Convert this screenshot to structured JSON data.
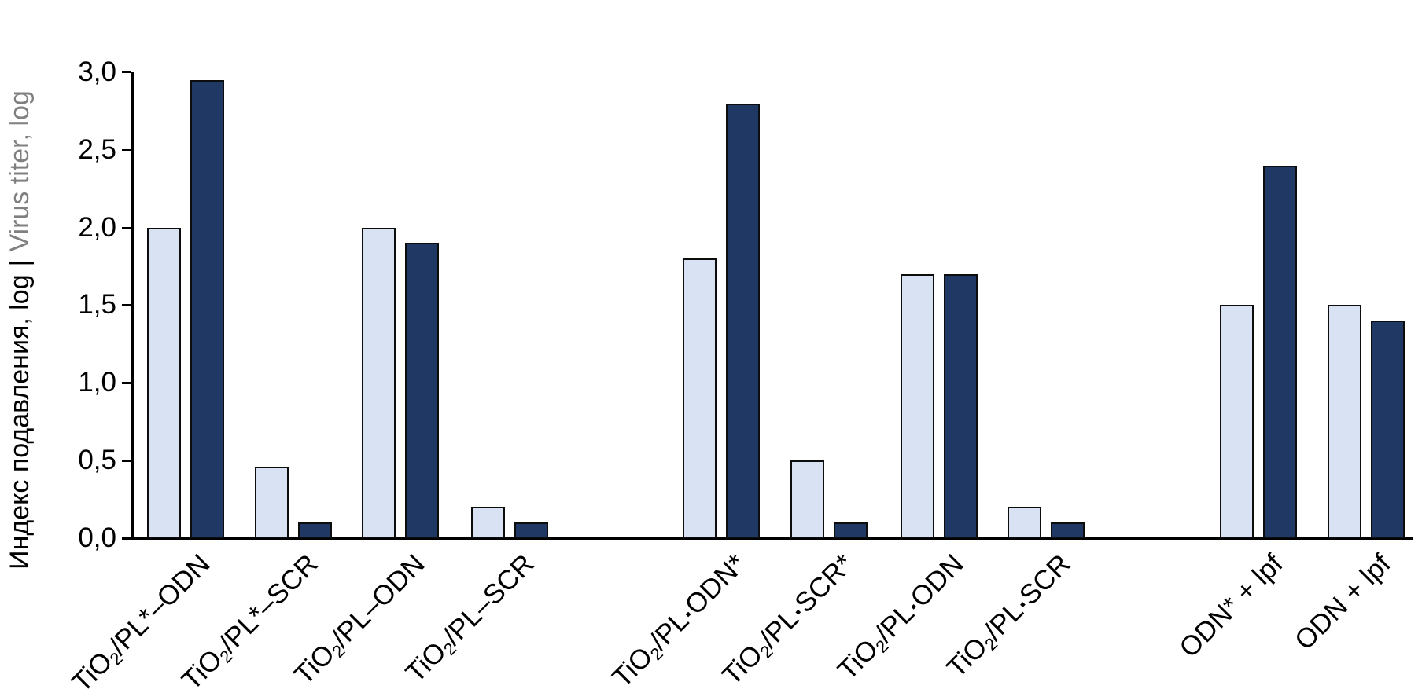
{
  "y_axis": {
    "title_main": "Индекс подавления, log",
    "separator": "|",
    "title_secondary": "Virus titer, log",
    "tick_labels": [
      "3,0",
      "2,5",
      "2,0",
      "1,5",
      "1,0",
      "0,5",
      "0,0"
    ]
  },
  "colors": {
    "light_bar": "#D9E2F3",
    "dark_bar": "#1F3864",
    "axis": "#000000",
    "secondary_text": "#808080",
    "bar_border": "#0d0d0d"
  },
  "chart_data": {
    "type": "bar",
    "title": "",
    "xlabel": "",
    "ylabel": "Индекс подавления, log | Virus titer, log",
    "ylim": [
      0,
      3
    ],
    "ytick_step": 0.5,
    "decimal_separator": ",",
    "grid": false,
    "legend": "none",
    "categories": [
      "TiO₂/PL*–ODN",
      "TiO₂/PL*–SCR",
      "TiO₂/PL–ODN",
      "TiO₂/PL–SCR",
      "TiO₂/PL▪ODN*",
      "TiO₂/PL▪SCR*",
      "TiO₂/PL▪ODN",
      "TiO₂/PL▪SCR",
      "ODN* + lpf",
      "ODN + lpf"
    ],
    "series": [
      {
        "name": "light",
        "color": "#D9E2F3",
        "values": [
          2.0,
          0.46,
          2.0,
          0.2,
          1.8,
          0.5,
          1.7,
          0.2,
          1.5,
          1.5
        ]
      },
      {
        "name": "dark",
        "color": "#1F3864",
        "values": [
          2.95,
          0.1,
          1.9,
          0.1,
          2.8,
          0.1,
          1.7,
          0.1,
          2.4,
          1.4
        ]
      }
    ]
  }
}
